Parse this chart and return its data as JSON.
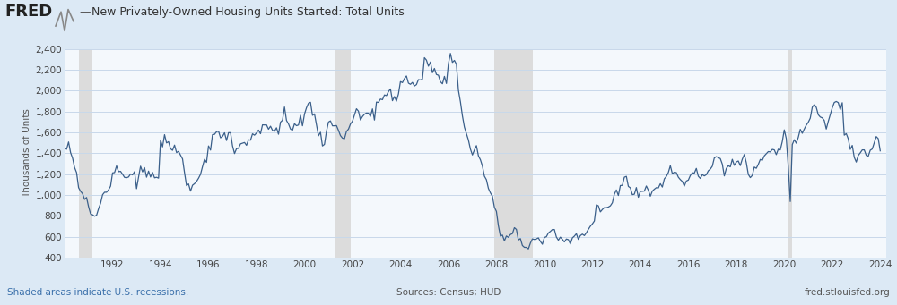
{
  "title": "New Privately-Owned Housing Units Started: Total Units",
  "ylabel": "Thousands of Units",
  "line_color": "#3a5f8a",
  "background_color": "#dce9f5",
  "plot_bg_color": "#f4f8fc",
  "recession_color": "#dcdcdc",
  "grid_color": "#c8d8ea",
  "fred_text_color": "#396faa",
  "footer_left": "Shaded areas indicate U.S. recessions.",
  "footer_mid": "Sources: Census; HUD",
  "footer_right": "fred.stlouisfed.org",
  "ylim": [
    400,
    2400
  ],
  "yticks": [
    400,
    600,
    800,
    1000,
    1200,
    1400,
    1600,
    1800,
    2000,
    2200,
    2400
  ],
  "recessions": [
    [
      1990.583,
      1991.167
    ],
    [
      2001.25,
      2001.917
    ],
    [
      2007.917,
      2009.5
    ],
    [
      2020.167,
      2020.333
    ]
  ],
  "xticks": [
    1992,
    1994,
    1996,
    1998,
    2000,
    2002,
    2004,
    2006,
    2008,
    2010,
    2012,
    2014,
    2016,
    2018,
    2020,
    2022,
    2024
  ],
  "xlim": [
    1990.0,
    2024.25
  ],
  "houst": [
    1457,
    1438,
    1508,
    1406,
    1353,
    1264,
    1215,
    1071,
    1036,
    1013,
    958,
    977,
    888,
    820,
    811,
    797,
    807,
    870,
    921,
    1003,
    1027,
    1027,
    1050,
    1085,
    1212,
    1215,
    1279,
    1224,
    1227,
    1199,
    1169,
    1166,
    1173,
    1202,
    1193,
    1224,
    1061,
    1172,
    1276,
    1222,
    1262,
    1171,
    1229,
    1173,
    1217,
    1165,
    1170,
    1162,
    1527,
    1461,
    1578,
    1499,
    1511,
    1443,
    1428,
    1478,
    1407,
    1418,
    1381,
    1346,
    1213,
    1090,
    1107,
    1038,
    1094,
    1109,
    1130,
    1161,
    1199,
    1273,
    1342,
    1313,
    1470,
    1430,
    1578,
    1581,
    1606,
    1612,
    1548,
    1561,
    1596,
    1522,
    1597,
    1597,
    1471,
    1397,
    1444,
    1447,
    1490,
    1497,
    1503,
    1476,
    1529,
    1525,
    1586,
    1573,
    1594,
    1622,
    1587,
    1672,
    1671,
    1672,
    1630,
    1659,
    1620,
    1610,
    1644,
    1582,
    1698,
    1716,
    1843,
    1714,
    1681,
    1632,
    1620,
    1683,
    1664,
    1671,
    1763,
    1663,
    1775,
    1836,
    1879,
    1888,
    1763,
    1777,
    1673,
    1567,
    1601,
    1470,
    1485,
    1610,
    1699,
    1710,
    1663,
    1663,
    1665,
    1619,
    1569,
    1545,
    1539,
    1609,
    1631,
    1680,
    1707,
    1766,
    1826,
    1803,
    1719,
    1751,
    1774,
    1785,
    1784,
    1753,
    1825,
    1718,
    1890,
    1887,
    1919,
    1913,
    1958,
    1952,
    1990,
    2016,
    1903,
    1943,
    1899,
    1968,
    2086,
    2076,
    2115,
    2140,
    2071,
    2060,
    2078,
    2044,
    2057,
    2105,
    2102,
    2110,
    2315,
    2292,
    2234,
    2274,
    2171,
    2212,
    2154,
    2147,
    2085,
    2065,
    2136,
    2068,
    2258,
    2356,
    2270,
    2289,
    2252,
    2003,
    1893,
    1758,
    1650,
    1587,
    1527,
    1440,
    1384,
    1432,
    1473,
    1376,
    1338,
    1278,
    1181,
    1147,
    1064,
    1021,
    989,
    883,
    844,
    706,
    607,
    617,
    562,
    608,
    595,
    622,
    631,
    688,
    671,
    570,
    583,
    517,
    500,
    499,
    485,
    540,
    580,
    575,
    580,
    590,
    556,
    529,
    594,
    601,
    637,
    652,
    670,
    670,
    598,
    568,
    597,
    576,
    551,
    579,
    573,
    532,
    590,
    607,
    630,
    575,
    612,
    626,
    612,
    639,
    672,
    702,
    724,
    752,
    906,
    897,
    839,
    862,
    880,
    879,
    885,
    897,
    926,
    1008,
    1049,
    996,
    1091,
    1093,
    1171,
    1179,
    1083,
    1069,
    1004,
    1008,
    1072,
    979,
    1035,
    1036,
    1038,
    1087,
    1047,
    989,
    1038,
    1056,
    1071,
    1068,
    1109,
    1077,
    1155,
    1178,
    1216,
    1281,
    1205,
    1218,
    1215,
    1171,
    1148,
    1130,
    1086,
    1134,
    1143,
    1187,
    1213,
    1210,
    1255,
    1180,
    1159,
    1196,
    1183,
    1195,
    1232,
    1248,
    1276,
    1355,
    1368,
    1358,
    1349,
    1296,
    1183,
    1254,
    1281,
    1270,
    1342,
    1284,
    1316,
    1326,
    1282,
    1344,
    1388,
    1311,
    1198,
    1167,
    1188,
    1268,
    1256,
    1294,
    1341,
    1332,
    1375,
    1395,
    1416,
    1413,
    1437,
    1432,
    1387,
    1439,
    1432,
    1512,
    1624,
    1540,
    1271,
    938,
    1483,
    1530,
    1496,
    1552,
    1629,
    1591,
    1632,
    1669,
    1697,
    1736,
    1841,
    1867,
    1840,
    1769,
    1747,
    1739,
    1714,
    1632,
    1705,
    1769,
    1835,
    1886,
    1896,
    1885,
    1818,
    1884,
    1573,
    1588,
    1538,
    1437,
    1475,
    1361,
    1316,
    1379,
    1404,
    1432,
    1432,
    1380,
    1371,
    1429,
    1441,
    1500,
    1560,
    1540,
    1423
  ]
}
